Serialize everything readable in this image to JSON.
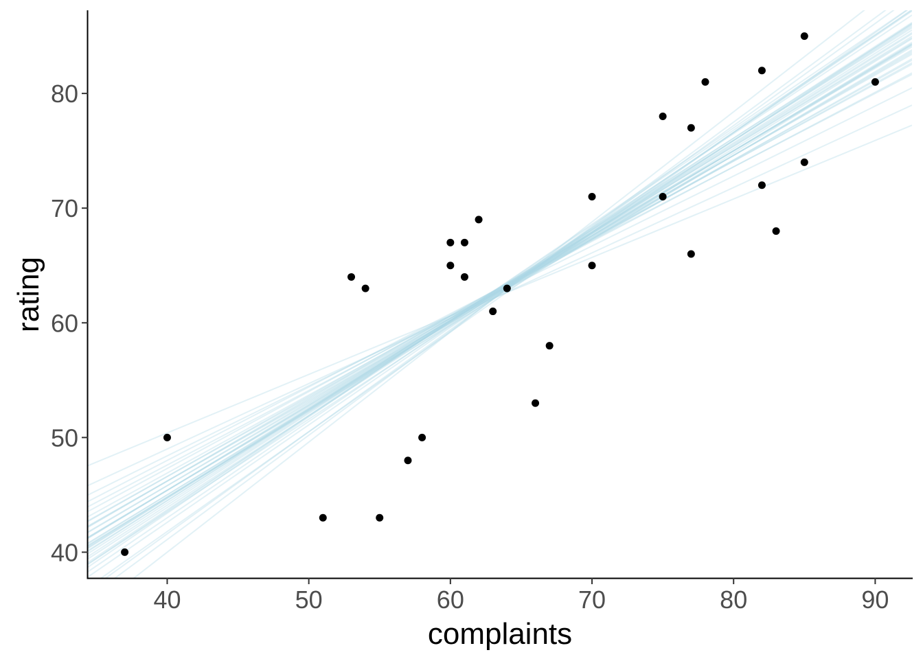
{
  "chart_data": {
    "type": "scatter",
    "title": "",
    "xlabel": "complaints",
    "ylabel": "rating",
    "xlim": [
      34.4,
      92.6
    ],
    "ylim": [
      37.75,
      87.25
    ],
    "x_ticks": [
      40,
      50,
      60,
      70,
      80,
      90
    ],
    "y_ticks": [
      40,
      50,
      60,
      70,
      80
    ],
    "grid": false,
    "legend": "none",
    "point_color": "#000000",
    "line_color": "#add8e6",
    "points": [
      {
        "x": 37,
        "y": 40
      },
      {
        "x": 40,
        "y": 50
      },
      {
        "x": 51,
        "y": 43
      },
      {
        "x": 53,
        "y": 64
      },
      {
        "x": 54,
        "y": 63
      },
      {
        "x": 55,
        "y": 43
      },
      {
        "x": 57,
        "y": 48
      },
      {
        "x": 58,
        "y": 50
      },
      {
        "x": 60,
        "y": 67
      },
      {
        "x": 60,
        "y": 65
      },
      {
        "x": 61,
        "y": 67
      },
      {
        "x": 61,
        "y": 64
      },
      {
        "x": 62,
        "y": 69
      },
      {
        "x": 63,
        "y": 61
      },
      {
        "x": 64,
        "y": 63
      },
      {
        "x": 66,
        "y": 53
      },
      {
        "x": 67,
        "y": 58
      },
      {
        "x": 70,
        "y": 71
      },
      {
        "x": 70,
        "y": 65
      },
      {
        "x": 75,
        "y": 78
      },
      {
        "x": 75,
        "y": 71
      },
      {
        "x": 77,
        "y": 77
      },
      {
        "x": 77,
        "y": 66
      },
      {
        "x": 78,
        "y": 81
      },
      {
        "x": 82,
        "y": 82
      },
      {
        "x": 82,
        "y": 72
      },
      {
        "x": 83,
        "y": 68
      },
      {
        "x": 85,
        "y": 85
      },
      {
        "x": 85,
        "y": 74
      },
      {
        "x": 90,
        "y": 81
      }
    ],
    "regression_lines": [
      {
        "intercept": 14.4,
        "slope": 0.76
      },
      {
        "intercept": 13.9,
        "slope": 0.77
      },
      {
        "intercept": 15.8,
        "slope": 0.74
      },
      {
        "intercept": 12.7,
        "slope": 0.79
      },
      {
        "intercept": 17.4,
        "slope": 0.72
      },
      {
        "intercept": 11.9,
        "slope": 0.8
      },
      {
        "intercept": 16.6,
        "slope": 0.73
      },
      {
        "intercept": 15.0,
        "slope": 0.75
      },
      {
        "intercept": 19.7,
        "slope": 0.68
      },
      {
        "intercept": 9.4,
        "slope": 0.84
      },
      {
        "intercept": 21.6,
        "slope": 0.65
      },
      {
        "intercept": 7.0,
        "slope": 0.87
      },
      {
        "intercept": 18.2,
        "slope": 0.7
      },
      {
        "intercept": 10.9,
        "slope": 0.82
      },
      {
        "intercept": 14.6,
        "slope": 0.76
      },
      {
        "intercept": 13.3,
        "slope": 0.78
      },
      {
        "intercept": 24.0,
        "slope": 0.61
      },
      {
        "intercept": 4.7,
        "slope": 0.91
      },
      {
        "intercept": 17.0,
        "slope": 0.72
      },
      {
        "intercept": 12.1,
        "slope": 0.8
      },
      {
        "intercept": 20.5,
        "slope": 0.67
      },
      {
        "intercept": 8.6,
        "slope": 0.85
      },
      {
        "intercept": 15.8,
        "slope": 0.74
      },
      {
        "intercept": 14.0,
        "slope": 0.77
      },
      {
        "intercept": 26.2,
        "slope": 0.57
      },
      {
        "intercept": 1.6,
        "slope": 0.96
      },
      {
        "intercept": 19.0,
        "slope": 0.69
      },
      {
        "intercept": 10.4,
        "slope": 0.83
      },
      {
        "intercept": 16.2,
        "slope": 0.73
      },
      {
        "intercept": 13.5,
        "slope": 0.78
      },
      {
        "intercept": 22.4,
        "slope": 0.64
      },
      {
        "intercept": 6.0,
        "slope": 0.89
      },
      {
        "intercept": 17.8,
        "slope": 0.71
      },
      {
        "intercept": 11.1,
        "slope": 0.81
      },
      {
        "intercept": 14.8,
        "slope": 0.75
      },
      {
        "intercept": 30.0,
        "slope": 0.51
      },
      {
        "intercept": 12.9,
        "slope": 0.79
      },
      {
        "intercept": 18.6,
        "slope": 0.7
      },
      {
        "intercept": 9.8,
        "slope": 0.84
      },
      {
        "intercept": 15.4,
        "slope": 0.75
      }
    ]
  }
}
